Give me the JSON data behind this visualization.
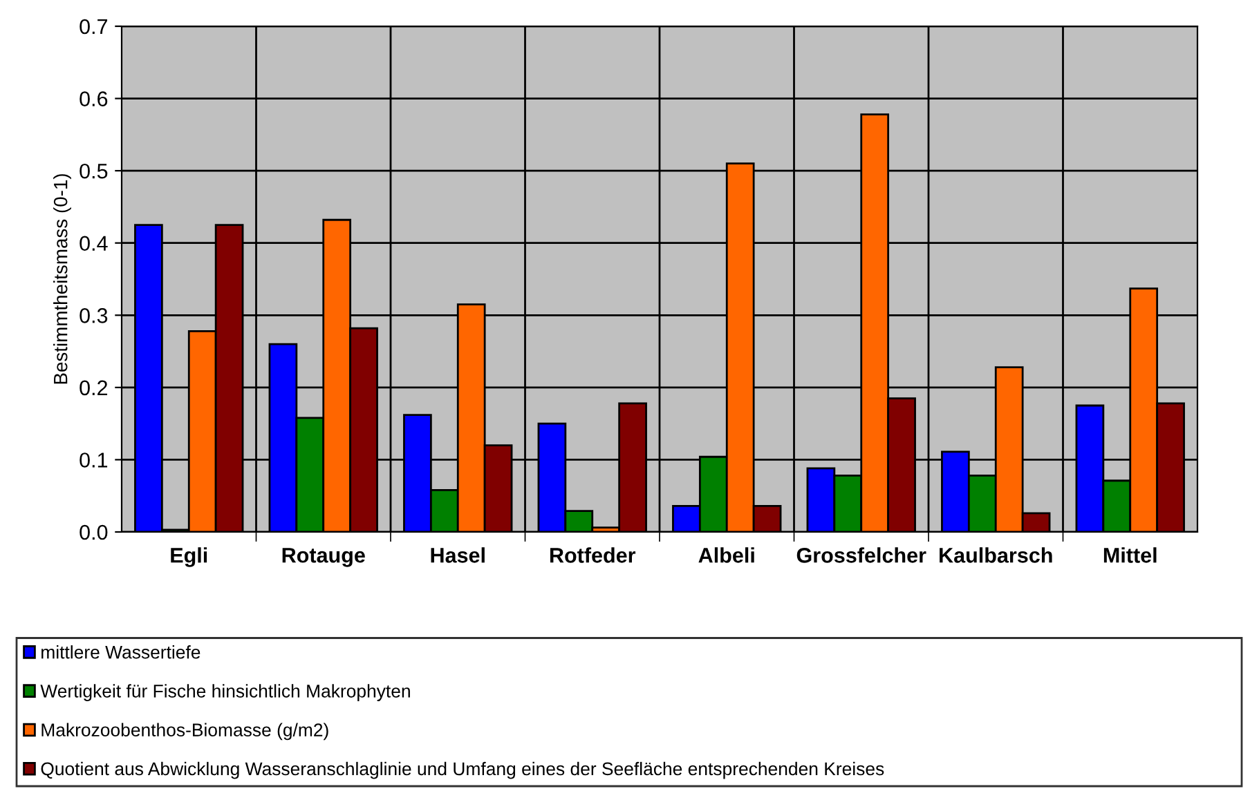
{
  "chart_data": {
    "type": "bar",
    "ylabel": "Bestimmtheitsmass (0-1)",
    "categories": [
      "Egli",
      "Rotauge",
      "Hasel",
      "Rotfeder",
      "Albeli",
      "Grossfelcher",
      "Kaulbarsch",
      "Mittel"
    ],
    "series": [
      {
        "name": "mittlere Wassertiefe",
        "color": "#0000ff",
        "values": [
          0.425,
          0.26,
          0.162,
          0.15,
          0.036,
          0.088,
          0.111,
          0.175
        ]
      },
      {
        "name": "Wertigkeit für Fische hinsichtlich Makrophyten",
        "color": "#008000",
        "values": [
          0.003,
          0.158,
          0.058,
          0.029,
          0.104,
          0.078,
          0.078,
          0.071
        ]
      },
      {
        "name": "Makrozoobenthos-Biomasse (g/m2)",
        "color": "#ff6600",
        "values": [
          0.278,
          0.432,
          0.315,
          0.006,
          0.51,
          0.578,
          0.228,
          0.337
        ]
      },
      {
        "name": "Quotient aus Abwicklung Wasseranschlaglinie und Umfang eines der Seefläche entsprechenden Kreises",
        "color": "#800000",
        "values": [
          0.425,
          0.282,
          0.12,
          0.178,
          0.036,
          0.185,
          0.026,
          0.178
        ]
      }
    ],
    "ylim": [
      0,
      0.7
    ],
    "yticks": [
      {
        "value": 0,
        "label": "0.0"
      },
      0.1,
      0.2,
      0.3,
      0.4,
      0.5,
      0.6,
      0.7
    ],
    "grid": true,
    "legend": "bottom"
  }
}
